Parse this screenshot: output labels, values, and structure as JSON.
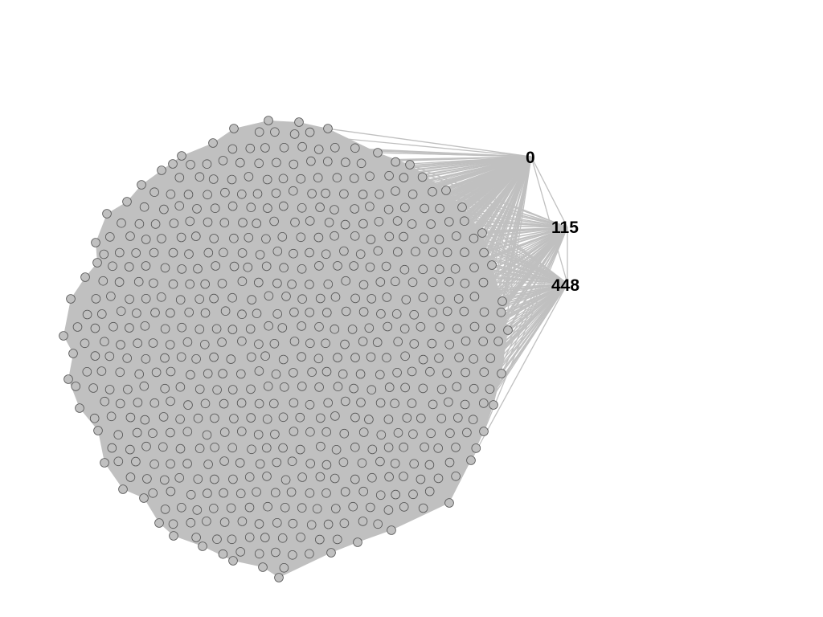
{
  "graph": {
    "hubs": [
      {
        "label": "0"
      },
      {
        "label": "115"
      },
      {
        "label": "448"
      }
    ],
    "colors": {
      "edge": "#c0c0c0",
      "node_fill": "#c0c0c0",
      "node_stroke": "#555555",
      "label": "#000000",
      "background": "#ffffff"
    }
  }
}
